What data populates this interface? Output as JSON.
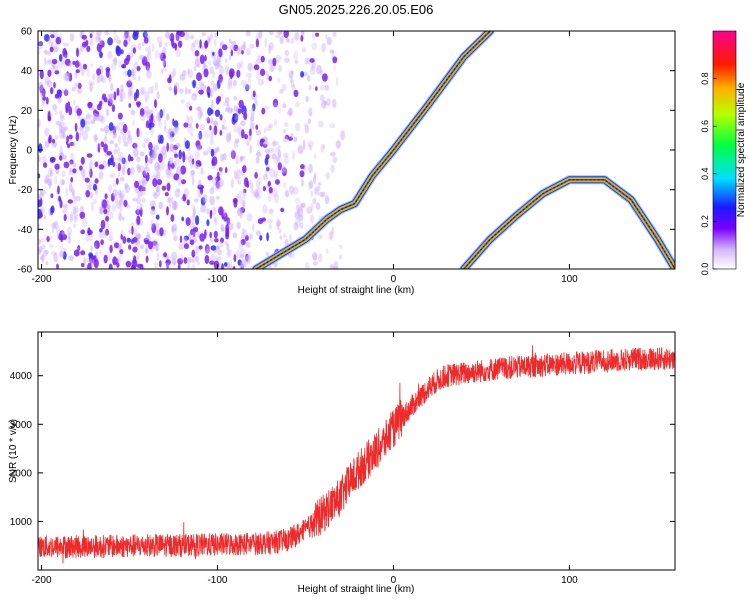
{
  "figure": {
    "title": "GN05.2025.226.20.05.E06"
  },
  "chart_data": [
    {
      "type": "heatmap",
      "title": "GN05.2025.226.20.05.E06",
      "xlabel": "Height of straight line (km)",
      "ylabel": "Frequency (Hz)",
      "xlim": [
        -202,
        160
      ],
      "ylim": [
        -60,
        60
      ],
      "x_ticks": [
        -200,
        -100,
        0,
        100
      ],
      "x_tick_labels": [
        "-200",
        "-100",
        "0",
        "100"
      ],
      "y_ticks": [
        -60,
        -40,
        -20,
        0,
        20,
        40,
        60
      ],
      "y_tick_labels": [
        "-60",
        "-40",
        "-20",
        "0",
        "20",
        "40",
        "60"
      ],
      "colorbar": {
        "label": "Normalized spectral amplitude",
        "range": [
          0,
          1
        ],
        "ticks": [
          0.0,
          0.2,
          0.4,
          0.6,
          0.8
        ],
        "tick_labels": [
          "0.0",
          "0.2",
          "0.4",
          "0.6",
          "0.8"
        ],
        "colormap": "rainbow (white-violet-blue-cyan-green-yellow-red-magenta)"
      },
      "noise_region_x": [
        -202,
        -40
      ],
      "ridges": [
        {
          "name": "",
          "points": [
            [
              -78,
              -60
            ],
            [
              -65,
              -53
            ],
            [
              -50,
              -45
            ],
            [
              -38,
              -35
            ],
            [
              -30,
              -30
            ],
            [
              -22,
              -27
            ],
            [
              -12,
              -13
            ],
            [
              0,
              0
            ],
            [
              20,
              23
            ],
            [
              40,
              47
            ],
            [
              55,
              60
            ]
          ]
        },
        {
          "name": "",
          "points": [
            [
              40,
              -60
            ],
            [
              55,
              -45
            ],
            [
              70,
              -33
            ],
            [
              85,
              -22
            ],
            [
              100,
              -15
            ],
            [
              120,
              -15
            ],
            [
              135,
              -25
            ],
            [
              150,
              -45
            ],
            [
              160,
              -60
            ]
          ]
        }
      ]
    },
    {
      "type": "line",
      "xlabel": "Height of straight line (km)",
      "ylabel": "SNR (10 * v/v)",
      "xlim": [
        -202,
        160
      ],
      "ylim": [
        0,
        4900
      ],
      "x_ticks": [
        -200,
        -100,
        0,
        100
      ],
      "x_tick_labels": [
        "-200",
        "-100",
        "0",
        "100"
      ],
      "y_ticks": [
        1000,
        2000,
        3000,
        4000
      ],
      "y_tick_labels": [
        "1000",
        "2000",
        "3000",
        "4000"
      ],
      "color": "#ee2a2a",
      "series": [
        {
          "name": "",
          "x": [
            -202,
            -180,
            -160,
            -140,
            -120,
            -100,
            -80,
            -70,
            -60,
            -50,
            -40,
            -35,
            -30,
            -25,
            -20,
            -15,
            -10,
            -5,
            0,
            5,
            10,
            15,
            20,
            25,
            30,
            40,
            50,
            60,
            80,
            100,
            120,
            140,
            160
          ],
          "values": [
            480,
            480,
            490,
            500,
            510,
            520,
            540,
            560,
            620,
            820,
            1150,
            1350,
            1500,
            1800,
            2050,
            2250,
            2450,
            2650,
            2900,
            3150,
            3350,
            3550,
            3750,
            3900,
            4000,
            4050,
            4100,
            4150,
            4200,
            4250,
            4300,
            4350,
            4350
          ]
        }
      ],
      "noise_amplitude": 300
    }
  ]
}
